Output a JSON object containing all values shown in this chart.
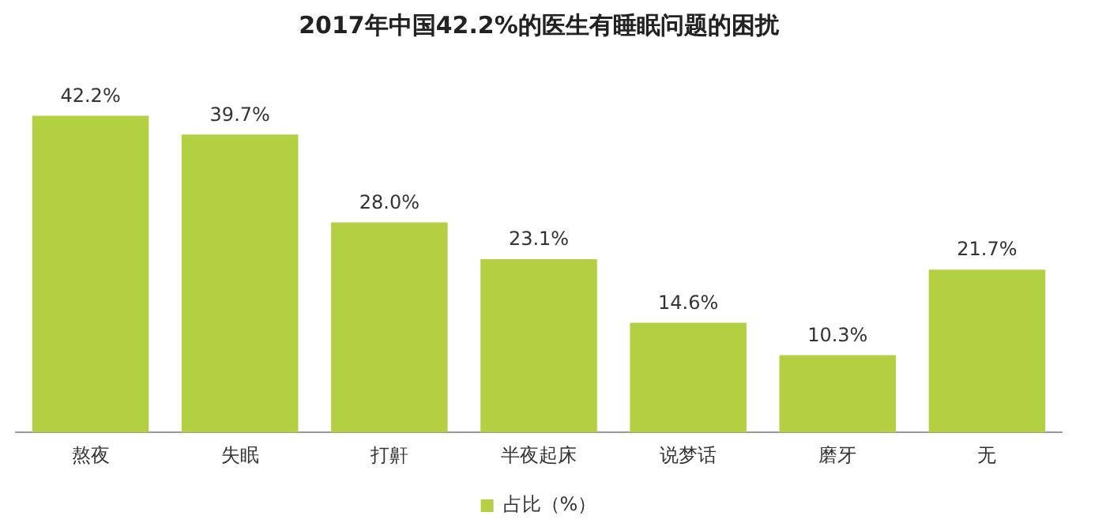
{
  "chart_data": {
    "type": "bar",
    "title": "2017年中国42.2%的医生有睡眠问题的困扰",
    "categories": [
      "熬夜",
      "失眠",
      "打鼾",
      "半夜起床",
      "说梦话",
      "磨牙",
      "无"
    ],
    "series": [
      {
        "name": "占比（%）",
        "color": "#b3cf42",
        "values": [
          42.2,
          39.7,
          28.0,
          23.1,
          14.6,
          10.3,
          21.7
        ],
        "value_labels": [
          "42.2%",
          "39.7%",
          "28.0%",
          "23.1%",
          "14.6%",
          "10.3%",
          "21.7%"
        ]
      }
    ],
    "legend": "bottom",
    "grid": false
  }
}
